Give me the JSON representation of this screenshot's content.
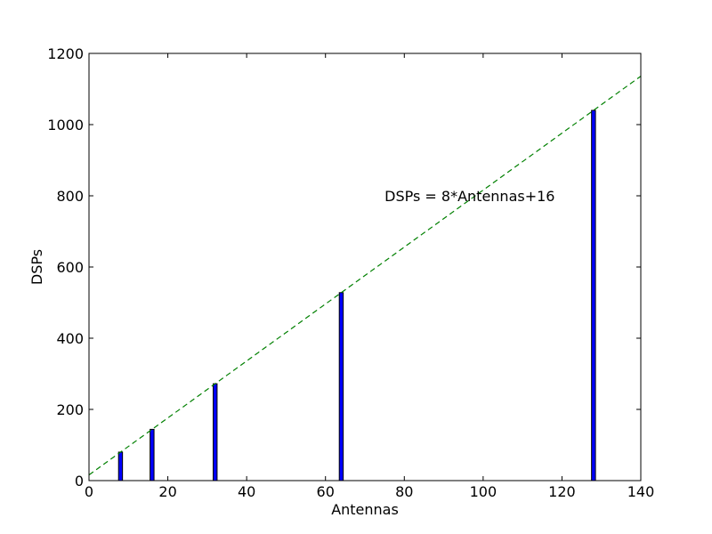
{
  "chart_data": {
    "type": "bar",
    "title": "",
    "xlabel": "Antennas",
    "ylabel": "DSPs",
    "xlim": [
      0,
      140
    ],
    "ylim": [
      0,
      1200
    ],
    "x_ticks": [
      0,
      20,
      40,
      60,
      80,
      100,
      120,
      140
    ],
    "y_ticks": [
      0,
      200,
      400,
      600,
      800,
      1000,
      1200
    ],
    "bar_width": 1,
    "bars": [
      {
        "x": 8,
        "y": 80
      },
      {
        "x": 16,
        "y": 144
      },
      {
        "x": 32,
        "y": 272
      },
      {
        "x": 64,
        "y": 528
      },
      {
        "x": 128,
        "y": 1040
      }
    ],
    "line": {
      "slope": 8,
      "intercept": 16,
      "x_range": [
        0,
        140
      ],
      "style": "dashed"
    },
    "annotation": {
      "text": "DSPs = 8*Antennas+16",
      "x": 75,
      "y": 800
    },
    "colors": {
      "bar_fill": "#0000ff",
      "bar_edge": "#000000",
      "line": "#008000"
    },
    "grid": false,
    "legend": "none"
  }
}
